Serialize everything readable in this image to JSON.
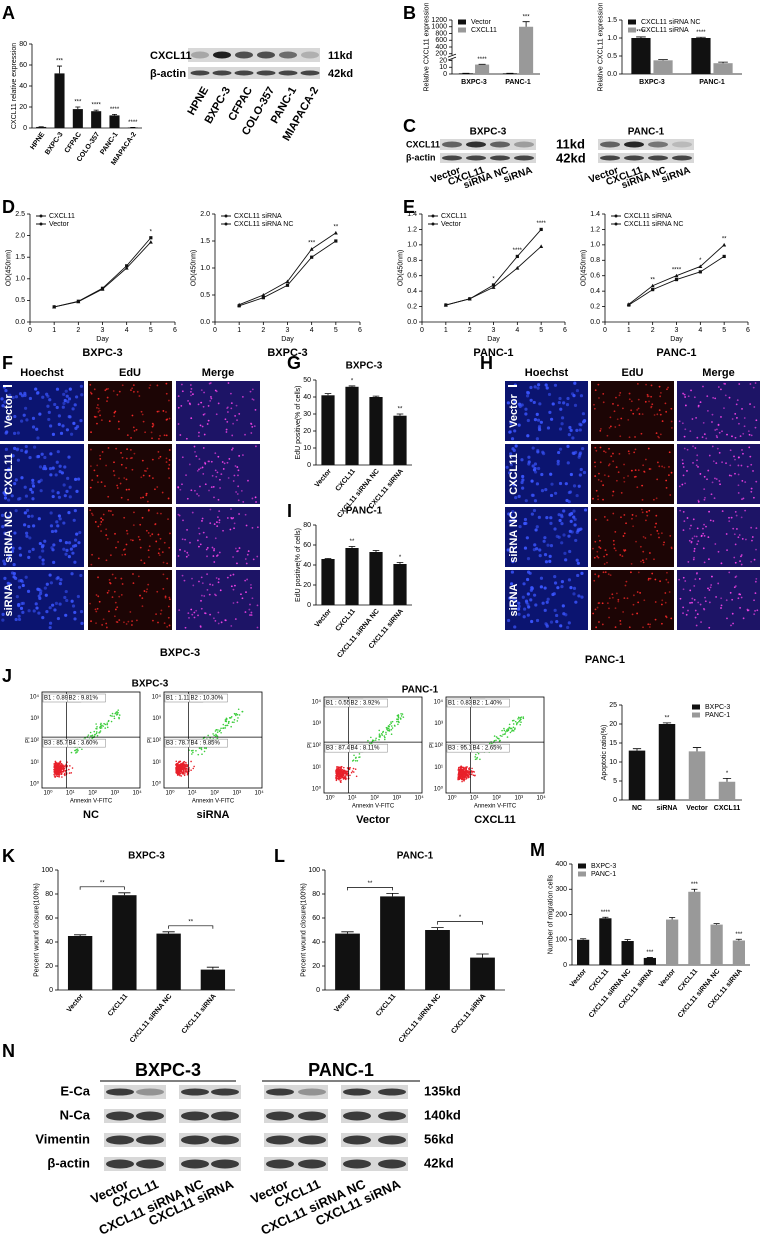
{
  "panel_letters": [
    "A",
    "B",
    "C",
    "D",
    "E",
    "F",
    "G",
    "H",
    "I",
    "J",
    "K",
    "L",
    "M",
    "N"
  ],
  "chart_data": [
    {
      "type": "bar",
      "ylabel": "CXCL11 relative expression",
      "categories": [
        "HPNE",
        "BXPC-3",
        "CFPAC",
        "COLO-357",
        "PANC-1",
        "MIAPACA-2"
      ],
      "values": [
        1,
        52,
        18,
        16,
        12,
        0.5
      ],
      "errors": [
        0.2,
        7,
        2,
        1,
        1,
        0.1
      ],
      "annotations": [
        null,
        "***",
        "***",
        "****",
        "****",
        "****"
      ],
      "color": "#111111",
      "ylim": [
        0,
        80
      ],
      "yticks": [
        0,
        20,
        40,
        60,
        80
      ]
    },
    {
      "type": "bar",
      "ylabel": "Relative CXCL11 expression",
      "categories": [
        "BXPC-3",
        "PANC-1"
      ],
      "series": [
        {
          "name": "Vector",
          "color": "#111111",
          "values": [
            1,
            1
          ],
          "errors": [
            0.1,
            0.1
          ],
          "annotations": [
            null,
            null
          ]
        },
        {
          "name": "CXCL11",
          "color": "#999999",
          "values": [
            14,
            1000
          ],
          "errors": [
            0.5,
            150
          ],
          "annotations": [
            "****",
            "***"
          ]
        }
      ],
      "ylim": [
        0,
        1200
      ],
      "yticks": [
        0,
        10,
        20,
        200,
        400,
        600,
        800,
        1000,
        1200
      ],
      "broken_axis": true,
      "legend": "upper left"
    },
    {
      "type": "bar",
      "ylabel": "Relative CXCL11 expression",
      "categories": [
        "BXPC-3",
        "PANC-1"
      ],
      "series": [
        {
          "name": "CXCL11 siRNA NC",
          "color": "#111111",
          "values": [
            1,
            1
          ],
          "errors": [
            0.03,
            0.02
          ],
          "annotations": [
            "****",
            "****"
          ]
        },
        {
          "name": "CXCL11 siRNA",
          "color": "#999999",
          "values": [
            0.38,
            0.3
          ],
          "errors": [
            0.02,
            0.03
          ],
          "annotations": [
            null,
            null
          ]
        }
      ],
      "ylim": [
        0,
        1.5
      ],
      "yticks": [
        {
          "value": 0,
          "label": "0.0"
        },
        0.5,
        {
          "value": 1,
          "label": "1.0"
        },
        1.5
      ],
      "legend": "upper left"
    },
    {
      "type": "line",
      "xlabel": "Day",
      "ylabel": "OD(450nm)",
      "subtitle": "BXPC-3",
      "x": [
        1,
        2,
        3,
        4,
        5
      ],
      "series": [
        {
          "name": "CXCL11",
          "color": "#111111",
          "values": [
            0.35,
            0.48,
            0.78,
            1.3,
            1.95
          ]
        },
        {
          "name": "Vector",
          "color": "#111111",
          "values": [
            0.35,
            0.47,
            0.76,
            1.25,
            1.85
          ]
        }
      ],
      "annotations": [
        null,
        null,
        null,
        null,
        "*"
      ],
      "xlim": [
        0,
        6
      ],
      "xticks": [
        0,
        1,
        2,
        3,
        4,
        5,
        6
      ],
      "ylim": [
        0,
        2.5
      ],
      "yticks": [
        {
          "value": 0,
          "label": "0.0"
        },
        0.5,
        {
          "value": 1,
          "label": "1.0"
        },
        1.5,
        {
          "value": 2,
          "label": "2.0"
        },
        2.5
      ],
      "legend": "upper left"
    },
    {
      "type": "line",
      "xlabel": "Day",
      "ylabel": "OD(450nm)",
      "subtitle": "BXPC-3",
      "x": [
        1,
        2,
        3,
        4,
        5
      ],
      "series": [
        {
          "name": "CXCL11 siRNA",
          "color": "#111111",
          "values": [
            0.3,
            0.45,
            0.68,
            1.2,
            1.5
          ]
        },
        {
          "name": "CXCL11 siRNA NC",
          "color": "#111111",
          "values": [
            0.32,
            0.5,
            0.75,
            1.35,
            1.65
          ]
        }
      ],
      "annotations": [
        null,
        null,
        null,
        "***",
        "**"
      ],
      "xlim": [
        0,
        6
      ],
      "xticks": [
        0,
        1,
        2,
        3,
        4,
        5,
        6
      ],
      "ylim": [
        0,
        2
      ],
      "yticks": [
        {
          "value": 0,
          "label": "0.0"
        },
        0.5,
        {
          "value": 1,
          "label": "1.0"
        },
        1.5,
        {
          "value": 2,
          "label": "2.0"
        }
      ],
      "legend": "upper left"
    },
    {
      "type": "line",
      "xlabel": "Day",
      "ylabel": "OD(450nm)",
      "subtitle": "PANC-1",
      "x": [
        1,
        2,
        3,
        4,
        5
      ],
      "series": [
        {
          "name": "CXCL11",
          "color": "#111111",
          "values": [
            0.22,
            0.3,
            0.48,
            0.85,
            1.2
          ]
        },
        {
          "name": "Vector",
          "color": "#111111",
          "values": [
            0.22,
            0.3,
            0.45,
            0.7,
            0.98
          ]
        }
      ],
      "annotations": [
        null,
        null,
        "*",
        "****",
        "****"
      ],
      "xlim": [
        0,
        6
      ],
      "xticks": [
        0,
        1,
        2,
        3,
        4,
        5,
        6
      ],
      "ylim": [
        0,
        1.4
      ],
      "yticks": [
        {
          "value": 0,
          "label": "0.0"
        },
        0.2,
        0.4,
        0.6,
        0.8,
        {
          "value": 1,
          "label": "1.0"
        },
        1.2,
        1.4
      ],
      "legend": "upper left"
    },
    {
      "type": "line",
      "xlabel": "Day",
      "ylabel": "OD(450nm)",
      "subtitle": "PANC-1",
      "x": [
        1,
        2,
        3,
        4,
        5
      ],
      "series": [
        {
          "name": "CXCL11 siRNA",
          "color": "#111111",
          "values": [
            0.22,
            0.42,
            0.55,
            0.65,
            0.85
          ]
        },
        {
          "name": "CXCL11 siRNA NC",
          "color": "#111111",
          "values": [
            0.23,
            0.47,
            0.6,
            0.72,
            1
          ]
        }
      ],
      "annotations": [
        null,
        "**",
        "****",
        "*",
        "**"
      ],
      "xlim": [
        0,
        6
      ],
      "xticks": [
        0,
        1,
        2,
        3,
        4,
        5,
        6
      ],
      "ylim": [
        0,
        1.4
      ],
      "yticks": [
        {
          "value": 0,
          "label": "0.0"
        },
        0.2,
        0.4,
        0.6,
        0.8,
        {
          "value": 1,
          "label": "1.0"
        },
        1.2,
        1.4
      ],
      "legend": "upper left"
    },
    {
      "type": "bar",
      "title": "BXPC-3",
      "ylabel": "EdU positive(% of cells)",
      "categories": [
        "Vector",
        "CXCL11",
        "CXCL11 siRNA NC",
        "CXCL11 siRNA"
      ],
      "values": [
        41,
        46,
        40,
        29
      ],
      "errors": [
        1,
        0.5,
        0.5,
        1
      ],
      "annotations": [
        null,
        "*",
        null,
        "**"
      ],
      "color": "#111111",
      "ylim": [
        0,
        50
      ],
      "yticks": [
        0,
        10,
        20,
        30,
        40,
        50
      ]
    },
    {
      "type": "bar",
      "title": "PANC-1",
      "ylabel": "EdU positive(% of cells)",
      "categories": [
        "Vector",
        "CXCL11",
        "CXCL11 siRNA NC",
        "CXCL11 siRNA"
      ],
      "values": [
        46,
        57,
        53,
        41
      ],
      "errors": [
        0.5,
        1.5,
        1.5,
        1.5
      ],
      "annotations": [
        null,
        "**",
        null,
        "*"
      ],
      "color": "#111111",
      "ylim": [
        0,
        80
      ],
      "yticks": [
        0,
        20,
        40,
        60,
        80
      ]
    },
    {
      "type": "bar",
      "ylabel": "Apoptotic ratio(%)",
      "categories": [
        "NC",
        "siRNA",
        "Vector",
        "CXCL11"
      ],
      "series": [
        {
          "name": "BXPC-3",
          "color": "#111111",
          "values": [
            13,
            20,
            null,
            null
          ],
          "errors": [
            0.5,
            0.3,
            null,
            null
          ],
          "annotations": [
            null,
            "**",
            null,
            null
          ]
        },
        {
          "name": "PANC-1",
          "color": "#999999",
          "values": [
            null,
            null,
            12.8,
            4.8
          ],
          "errors": [
            null,
            null,
            1,
            0.9
          ],
          "annotations": [
            null,
            null,
            null,
            "*"
          ]
        }
      ],
      "ylim": [
        0,
        25
      ],
      "yticks": [
        0,
        5,
        10,
        15,
        20,
        25
      ],
      "legend": "upper right"
    },
    {
      "type": "bar",
      "title": "BXPC-3",
      "ylabel": "Percent wound closure(100%)",
      "categories": [
        "Vector",
        "CXCL11",
        "CXCL11 siRNA NC",
        "CXCL11 siRNA"
      ],
      "values": [
        45,
        79,
        47,
        17
      ],
      "errors": [
        1,
        2,
        1.5,
        2
      ],
      "annotations": [
        null,
        "**",
        null,
        "**"
      ],
      "annotation_style": "bracket",
      "color": "#111111",
      "ylim": [
        0,
        100
      ],
      "yticks": [
        0,
        20,
        40,
        60,
        80,
        100
      ]
    },
    {
      "type": "bar",
      "title": "PANC-1",
      "ylabel": "Percent wound closure(100%)",
      "categories": [
        "Vector",
        "CXCL11",
        "CXCL11 siRNA NC",
        "CXCL11 siRNA"
      ],
      "values": [
        47,
        78,
        50,
        27
      ],
      "errors": [
        1.5,
        2.5,
        2,
        3
      ],
      "annotations": [
        null,
        "**",
        null,
        "*"
      ],
      "annotation_style": "bracket",
      "color": "#111111",
      "ylim": [
        0,
        100
      ],
      "yticks": [
        0,
        20,
        40,
        60,
        80,
        100
      ]
    },
    {
      "type": "bar",
      "ylabel": "Number of migration cells",
      "categories": [
        "Vector",
        "CXCL11",
        "CXCL11 siRNA NC",
        "CXCL11 siRNA",
        "Vector",
        "CXCL11",
        "CXCL11 siRNA NC",
        "CXCL11 siRNA"
      ],
      "series": [
        {
          "name": "BXPC-3",
          "color": "#111111",
          "values": [
            100,
            185,
            95,
            28,
            null,
            null,
            null,
            null
          ],
          "errors": [
            4,
            4,
            6,
            2,
            null,
            null,
            null,
            null
          ],
          "annotations": [
            null,
            "****",
            null,
            "***",
            null,
            null,
            null,
            null
          ]
        },
        {
          "name": "PANC-1",
          "color": "#999999",
          "values": [
            null,
            null,
            null,
            null,
            180,
            290,
            160,
            97
          ],
          "errors": [
            null,
            null,
            null,
            null,
            8,
            10,
            4,
            5
          ],
          "annotations": [
            null,
            null,
            null,
            null,
            null,
            "***",
            null,
            "***"
          ]
        }
      ],
      "ylim": [
        0,
        400
      ],
      "yticks": [
        0,
        100,
        200,
        300,
        400
      ],
      "legend": "upper left"
    }
  ],
  "blot_a": {
    "targets": [
      "CXCL11",
      "β-actin"
    ],
    "sizes": [
      "11kd",
      "42kd"
    ],
    "lanes": [
      "HPNE",
      "BXPC-3",
      "CFPAC",
      "COLO-357",
      "PANC-1",
      "MIAPACA-2"
    ]
  },
  "blot_c": {
    "cells": [
      "BXPC-3",
      "PANC-1"
    ],
    "targets": [
      "CXCL11",
      "β-actin"
    ],
    "sizes": [
      "11kd",
      "42kd"
    ],
    "lanes": [
      "Vector",
      "CXCL11",
      "siRNA NC",
      "siRNA"
    ]
  },
  "edu_images": {
    "channels": [
      "Hoechst",
      "EdU",
      "Merge"
    ],
    "groups": [
      "Vector",
      "CXCL11",
      "siRNA NC",
      "siRNA"
    ],
    "cells": [
      "BXPC-3",
      "PANC-1"
    ]
  },
  "flow": {
    "titles": [
      "BXPC-3",
      "PANC-1"
    ],
    "ylabel": "PI",
    "xlabel": "Annexin V-FITC",
    "ticks": [
      "10⁰",
      "10¹",
      "10²",
      "10³",
      "10⁴"
    ],
    "plots": [
      {
        "caption": "NC",
        "quadrants": [
          "B1 : 0.89%",
          "B2 : 9.81%",
          "B3 : 85.70%",
          "B4 : 3.60%"
        ]
      },
      {
        "caption": "siRNA",
        "quadrants": [
          "B1 : 1.11%",
          "B2 : 10.30%",
          "B3 : 78.72%",
          "B4 : 9.85%"
        ]
      },
      {
        "caption": "Vector",
        "quadrants": [
          "B1 : 0.55%",
          "B2 : 3.92%",
          "B3 : 87.40%",
          "B4 : 8.11%"
        ]
      },
      {
        "caption": "CXCL11",
        "quadrants": [
          "B1 : 0.83%",
          "B2 : 1.40%",
          "B3 : 95.12%",
          "B4 : 2.65%"
        ]
      }
    ]
  },
  "blot_n": {
    "cells": [
      "BXPC-3",
      "PANC-1"
    ],
    "targets": [
      "E-Ca",
      "N-Ca",
      "Vimentin",
      "β-actin"
    ],
    "sizes": [
      "135kd",
      "140kd",
      "56kd",
      "42kd"
    ],
    "lanes": [
      "Vector",
      "CXCL11",
      "CXCL11 siRNA NC",
      "CXCL11 siRNA"
    ]
  }
}
